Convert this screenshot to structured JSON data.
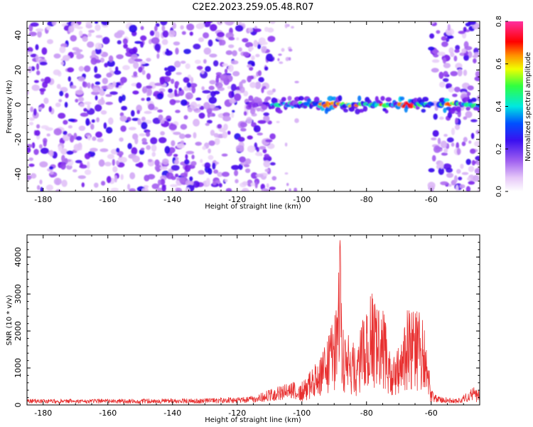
{
  "title": "C2E2.2023.259.05.48.R07",
  "colors": {
    "snr_line": "#e83030",
    "axis": "#000000"
  },
  "chart_data": [
    {
      "type": "heatmap",
      "xlabel": "Height of straight line (km)",
      "ylabel": "Frequency (Hz)",
      "xlim": [
        -185,
        -45
      ],
      "ylim": [
        -50,
        48
      ],
      "x_ticks": [
        "-180",
        "-160",
        "-140",
        "-120",
        "-100",
        "-80",
        "-60"
      ],
      "y_ticks": [
        "-40",
        "-20",
        "0",
        "20",
        "40"
      ],
      "colorbar": {
        "label": "Normalized spectral amplitude",
        "range": [
          0,
          0.8
        ],
        "ticks": [
          "0.0",
          "0.2",
          "0.4",
          "0.6",
          "0.8"
        ]
      },
      "regions": [
        {
          "x": [
            -185,
            -109
          ],
          "kind": "broadband-noise"
        },
        {
          "x": [
            -109,
            -101
          ],
          "kind": "sparse"
        },
        {
          "x": [
            -101,
            -60
          ],
          "kind": "narrow-band-signal-near-0Hz"
        },
        {
          "x": [
            -60,
            -45
          ],
          "kind": "broadband-noise-plus-band"
        }
      ],
      "signal_band_hz": [
        -5,
        5
      ],
      "peak_amplitude_height_km": [
        -92,
        -68,
        -57
      ]
    },
    {
      "type": "line",
      "xlabel": "Height of straight line (km)",
      "ylabel": "SNR (10 * v/v)",
      "xlim": [
        -185,
        -45
      ],
      "ylim": [
        0,
        4600
      ],
      "x_ticks": [
        "-180",
        "-160",
        "-140",
        "-120",
        "-100",
        "-80",
        "-60"
      ],
      "y_ticks": [
        "0",
        "1000",
        "2000",
        "3000",
        "4000"
      ],
      "series": [
        {
          "points": [
            [
              -185,
              100
            ],
            [
              -160,
              100
            ],
            [
              -130,
              110
            ],
            [
              -115,
              150
            ],
            [
              -108,
              300
            ],
            [
              -102,
              400
            ],
            [
              -98,
              900
            ],
            [
              -94,
              1300
            ],
            [
              -91,
              2100
            ],
            [
              -89,
              2700
            ],
            [
              -88.2,
              4450
            ],
            [
              -87,
              2100
            ],
            [
              -85,
              1800
            ],
            [
              -83,
              1600
            ],
            [
              -81,
              2400
            ],
            [
              -79,
              3000
            ],
            [
              -77,
              3100
            ],
            [
              -75,
              2900
            ],
            [
              -73,
              1800
            ],
            [
              -71,
              1500
            ],
            [
              -69,
              1700
            ],
            [
              -67,
              2800
            ],
            [
              -65,
              2500
            ],
            [
              -63,
              2700
            ],
            [
              -61,
              1400
            ],
            [
              -60,
              250
            ],
            [
              -58,
              150
            ],
            [
              -52,
              100
            ],
            [
              -48,
              250
            ],
            [
              -45,
              500
            ]
          ]
        }
      ]
    }
  ]
}
